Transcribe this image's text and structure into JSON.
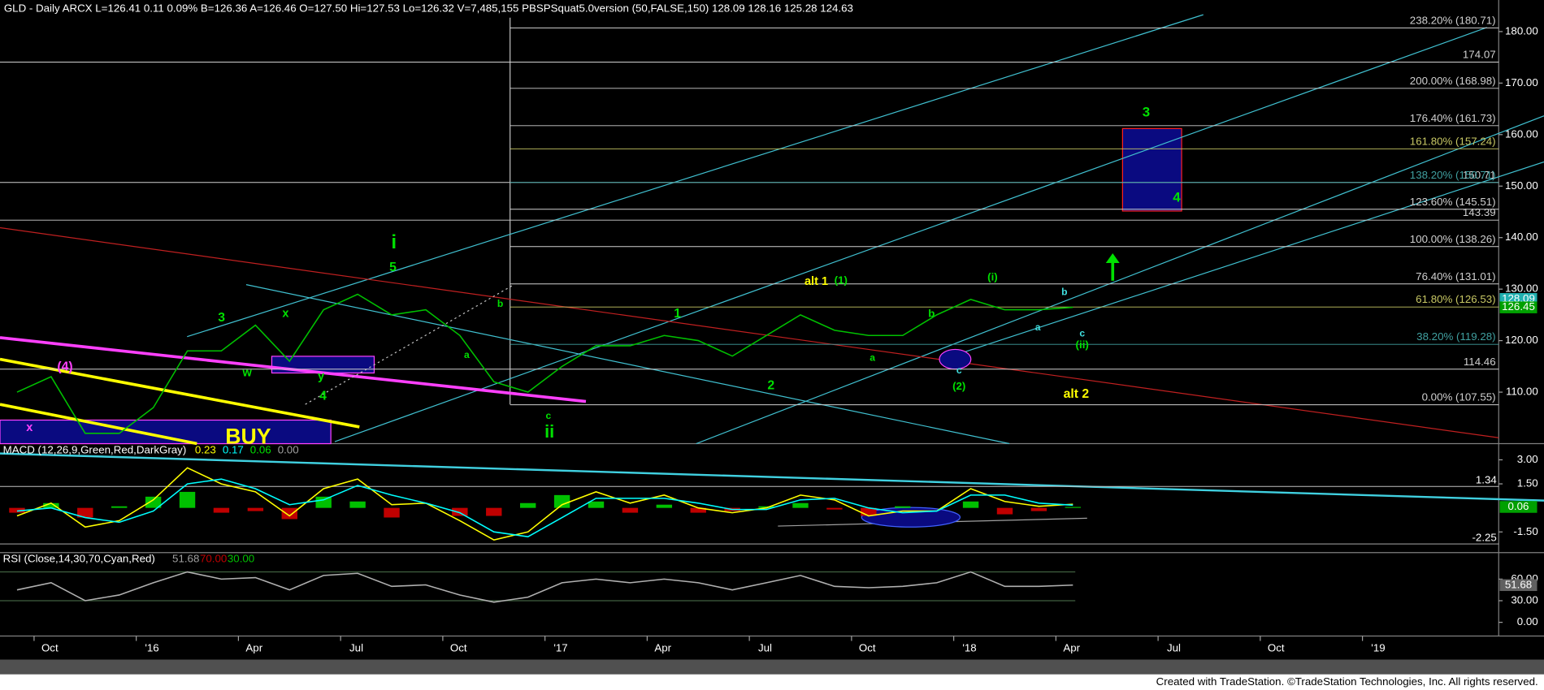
{
  "header": "GLD - Daily  ARCX  L=126.41  0.11  0.09%  B=126.36  A=126.46  O=127.50  Hi=127.53  Lo=126.32  V=7,485,155  PBSPSquat5.0version (50,FALSE,150)  128.09  128.16  125.28  124.63",
  "footer": "Created with TradeStation. ©TradeStation Technologies, Inc. All rights reserved.",
  "chart_data": [
    {
      "type": "line",
      "x": [
        "2015-09",
        "2015-10",
        "2015-11",
        "2015-12",
        "2016-01",
        "2016-02",
        "2016-03",
        "2016-04",
        "2016-05",
        "2016-06",
        "2016-07",
        "2016-08",
        "2016-09",
        "2016-10",
        "2016-11",
        "2016-12",
        "2017-01",
        "2017-02",
        "2017-03",
        "2017-04",
        "2017-05",
        "2017-06",
        "2017-07",
        "2017-08",
        "2017-09",
        "2017-10",
        "2017-11",
        "2017-12",
        "2018-01",
        "2018-02",
        "2018-03",
        "2018-04"
      ],
      "series": [
        {
          "color": "#00c000",
          "values": [
            110,
            113,
            102,
            102,
            107,
            118,
            118,
            123,
            116,
            126,
            129,
            125,
            126,
            121,
            112,
            110,
            115,
            119,
            119,
            121,
            120,
            117,
            121,
            125,
            122,
            121,
            121,
            125,
            128,
            126,
            126,
            126.46
          ]
        }
      ],
      "xlim": [
        "2015-09",
        "2019-05"
      ],
      "xticks": [
        {
          "value": "2015-10",
          "label": "Oct"
        },
        {
          "value": "2016-01",
          "label": "'16"
        },
        {
          "value": "2016-04",
          "label": "Apr"
        },
        {
          "value": "2016-07",
          "label": "Jul"
        },
        {
          "value": "2016-10",
          "label": "Oct"
        },
        {
          "value": "2017-01",
          "label": "'17"
        },
        {
          "value": "2017-04",
          "label": "Apr"
        },
        {
          "value": "2017-07",
          "label": "Jul"
        },
        {
          "value": "2017-10",
          "label": "Oct"
        },
        {
          "value": "2018-01",
          "label": "'18"
        },
        {
          "value": "2018-04",
          "label": "Apr"
        },
        {
          "value": "2018-07",
          "label": "Jul"
        },
        {
          "value": "2018-10",
          "label": "Oct"
        },
        {
          "value": "2019-01",
          "label": "'19"
        }
      ],
      "ylim": [
        100,
        182.7
      ],
      "yticks": [
        {
          "value": 180,
          "label": "180.00"
        },
        {
          "value": 170,
          "label": "170.00"
        },
        {
          "value": 160,
          "label": "160.00"
        },
        {
          "value": 150,
          "label": "150.00"
        },
        {
          "value": 140,
          "label": "140.00"
        },
        {
          "value": 130,
          "label": "130.00"
        },
        {
          "value": 120,
          "label": "120.00"
        },
        {
          "value": 110,
          "label": "110.00"
        }
      ],
      "levels": [
        {
          "value": 180.71,
          "label": "238.20% (180.71)",
          "color": "#d0d0d0"
        },
        {
          "value": 174.07,
          "label": "174.07",
          "color": "#d0d0d0"
        },
        {
          "value": 168.98,
          "label": "200.00% (168.98)",
          "color": "#d0d0d0"
        },
        {
          "value": 161.73,
          "label": "176.40% (161.73)",
          "color": "#d0d0d0"
        },
        {
          "value": 157.24,
          "label": "161.80% (157.24)",
          "color": "#c8c864"
        },
        {
          "value": 150.71,
          "label": "150.71",
          "color": "#d0d0d0"
        },
        {
          "value": 150.71,
          "label": "138.20% (150.71)",
          "color": "#40a0a0"
        },
        {
          "value": 145.51,
          "label": "123.60% (145.51)",
          "color": "#d0d0d0"
        },
        {
          "value": 143.39,
          "label": "143.39",
          "color": "#d0d0d0"
        },
        {
          "value": 138.26,
          "label": "100.00% (138.26)",
          "color": "#d0d0d0"
        },
        {
          "value": 131.01,
          "label": "76.40% (131.01)",
          "color": "#d0d0d0"
        },
        {
          "value": 126.53,
          "label": "61.80% (126.53)",
          "color": "#c8c864"
        },
        {
          "value": 119.28,
          "label": "38.20% (119.28)",
          "color": "#40a0a0"
        },
        {
          "value": 114.46,
          "label": "114.46",
          "color": "#d0d0d0"
        },
        {
          "value": 107.55,
          "label": "0.00% (107.55)",
          "color": "#d0d0d0"
        }
      ],
      "last_values": [
        {
          "value": 128.09,
          "color": "#20b0b0"
        },
        {
          "value": 126.45,
          "color": "#00a000"
        }
      ],
      "annotations": [
        {
          "text": "i",
          "color": "#00e000"
        },
        {
          "text": "5",
          "color": "#00e000"
        },
        {
          "text": "3",
          "color": "#00e000"
        },
        {
          "text": "x",
          "color": "#00e000"
        },
        {
          "text": "w",
          "color": "#00e000"
        },
        {
          "text": "y",
          "color": "#00e000"
        },
        {
          "text": "4",
          "color": "#00e000"
        },
        {
          "text": "(4)",
          "color": "#ff40ff"
        },
        {
          "text": "x",
          "color": "#ff40ff"
        },
        {
          "text": "BUY",
          "color": "#ffff00"
        },
        {
          "text": "b",
          "color": "#00e000"
        },
        {
          "text": "a",
          "color": "#00e000"
        },
        {
          "text": "c",
          "color": "#00e000"
        },
        {
          "text": "ii",
          "color": "#00e000"
        },
        {
          "text": "1",
          "color": "#00e000"
        },
        {
          "text": "2",
          "color": "#00e000"
        },
        {
          "text": "alt 1",
          "color": "#ffff00"
        },
        {
          "text": "(1)",
          "color": "#00e000"
        },
        {
          "text": "a",
          "color": "#00e000"
        },
        {
          "text": "b",
          "color": "#00e000"
        },
        {
          "text": "c",
          "color": "#40e0e0"
        },
        {
          "text": "(2)",
          "color": "#00e000"
        },
        {
          "text": "(i)",
          "color": "#00e000"
        },
        {
          "text": "a",
          "color": "#40e0e0"
        },
        {
          "text": "b",
          "color": "#40e0e0"
        },
        {
          "text": "c",
          "color": "#40e0e0"
        },
        {
          "text": "(ii)",
          "color": "#00e000"
        },
        {
          "text": "alt 2",
          "color": "#ffff00"
        },
        {
          "text": "3",
          "color": "#00e000"
        },
        {
          "text": "4",
          "color": "#00e000"
        }
      ]
    },
    {
      "type": "line",
      "title": "MACD (12,26,9,Green,Red,DarkGray)",
      "readouts": [
        {
          "text": "0.23",
          "color": "#ffff00"
        },
        {
          "text": "0.17",
          "color": "#00ffff"
        },
        {
          "text": "0.06",
          "color": "#00e000"
        },
        {
          "text": "0.00",
          "color": "#a0a0a0"
        }
      ],
      "ylim": [
        -2.79,
        4.01
      ],
      "yticks": [
        {
          "value": 3,
          "label": "3.00"
        },
        {
          "value": 1.5,
          "label": "1.50"
        },
        {
          "value": -1.5,
          "label": "-1.50"
        }
      ],
      "levels": [
        1.34,
        -2.25
      ],
      "last_value": {
        "value": 0.06,
        "color": "#00a000"
      },
      "series": [
        {
          "color": "#ffff00",
          "values": [
            -0.5,
            0.3,
            -1.2,
            -0.8,
            0.5,
            2.5,
            1.5,
            1.0,
            -0.5,
            1.2,
            1.8,
            0.2,
            0.3,
            -0.8,
            -2.0,
            -1.5,
            0.2,
            1.0,
            0.3,
            0.8,
            0.0,
            -0.3,
            0.0,
            0.8,
            0.5,
            -0.5,
            -0.2,
            -0.2,
            1.2,
            0.4,
            0.1,
            0.23
          ]
        },
        {
          "color": "#00ffff",
          "values": [
            -0.2,
            0.0,
            -0.6,
            -0.9,
            -0.2,
            1.5,
            1.8,
            1.2,
            0.2,
            0.5,
            1.4,
            0.8,
            0.3,
            -0.3,
            -1.5,
            -1.8,
            -0.6,
            0.6,
            0.6,
            0.6,
            0.3,
            -0.1,
            -0.1,
            0.5,
            0.6,
            0.0,
            -0.3,
            -0.2,
            0.8,
            0.8,
            0.3,
            0.17
          ]
        }
      ],
      "histogram": {
        "pos_color": "#00c000",
        "neg_color": "#c00000",
        "values": [
          -0.3,
          0.3,
          -0.6,
          0.1,
          0.7,
          1.0,
          -0.3,
          -0.2,
          -0.7,
          0.7,
          0.4,
          -0.6,
          0.0,
          -0.5,
          -0.5,
          0.3,
          0.8,
          0.4,
          -0.3,
          0.2,
          -0.3,
          -0.2,
          0.1,
          0.3,
          -0.1,
          -0.5,
          0.1,
          0.0,
          0.4,
          -0.4,
          -0.2,
          0.06
        ]
      }
    },
    {
      "type": "line",
      "title": "RSI (Close,14,30,70,Cyan,Red)",
      "readouts": [
        {
          "text": "51.68",
          "color": "#a0a0a0"
        },
        {
          "text": "70.00",
          "color": "#c00000"
        },
        {
          "text": "30.00",
          "color": "#00c000"
        }
      ],
      "ylim": [
        -19,
        96.8
      ],
      "yticks": [
        {
          "value": 60,
          "label": "60.00"
        },
        {
          "value": 30,
          "label": "30.00"
        },
        {
          "value": 0,
          "label": "0.00"
        }
      ],
      "bands": [
        70,
        30
      ],
      "series": [
        {
          "color": "#b0b0b0",
          "values": [
            45,
            55,
            30,
            38,
            55,
            70,
            60,
            62,
            45,
            65,
            68,
            50,
            52,
            38,
            28,
            35,
            55,
            60,
            55,
            60,
            55,
            45,
            55,
            65,
            50,
            48,
            50,
            55,
            70,
            50,
            50,
            51.68
          ]
        }
      ]
    }
  ]
}
